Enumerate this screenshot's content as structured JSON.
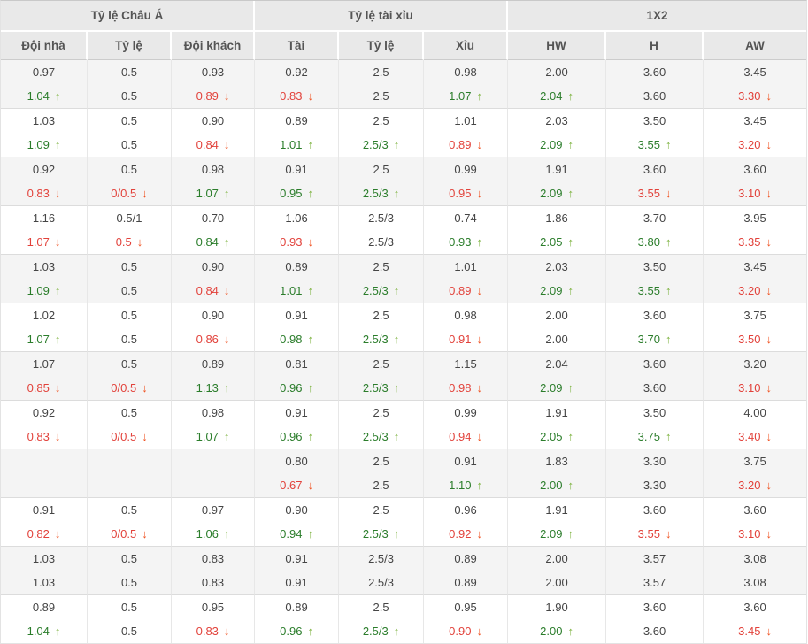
{
  "colors": {
    "up_text": "#2b7d2b",
    "up_arrow": "#7cb23d",
    "down_text": "#e2423b",
    "down_arrow": "#f05423",
    "header_bg": "#e9e9e9",
    "row_shade_bg": "#f4f4f4",
    "body_text": "#454545"
  },
  "icons": {
    "up": "↑",
    "down": "↓"
  },
  "table": {
    "groups": [
      {
        "label": "Tỷ lệ Châu Á"
      },
      {
        "label": "Tỷ lệ tài xỉu"
      },
      {
        "label": "1X2"
      }
    ],
    "columns": [
      "Đội nhà",
      "Tỷ lệ",
      "Đội khách",
      "Tài",
      "Tỷ lệ",
      "Xỉu",
      "HW",
      "H",
      "AW"
    ],
    "row_groups": [
      {
        "line1": [
          "0.97",
          "0.5",
          "0.93",
          "0.92",
          "2.5",
          "0.98",
          "2.00",
          "3.60",
          "3.45"
        ],
        "line2": [
          {
            "v": "1.04",
            "d": "up"
          },
          "0.5",
          {
            "v": "0.89",
            "d": "down"
          },
          {
            "v": "0.83",
            "d": "down"
          },
          "2.5",
          {
            "v": "1.07",
            "d": "up"
          },
          {
            "v": "2.04",
            "d": "up"
          },
          "3.60",
          {
            "v": "3.30",
            "d": "down"
          }
        ]
      },
      {
        "line1": [
          "1.03",
          "0.5",
          "0.90",
          "0.89",
          "2.5",
          "1.01",
          "2.03",
          "3.50",
          "3.45"
        ],
        "line2": [
          {
            "v": "1.09",
            "d": "up"
          },
          "0.5",
          {
            "v": "0.84",
            "d": "down"
          },
          {
            "v": "1.01",
            "d": "up"
          },
          {
            "v": "2.5/3",
            "d": "up"
          },
          {
            "v": "0.89",
            "d": "down"
          },
          {
            "v": "2.09",
            "d": "up"
          },
          {
            "v": "3.55",
            "d": "up"
          },
          {
            "v": "3.20",
            "d": "down"
          }
        ]
      },
      {
        "line1": [
          "0.92",
          "0.5",
          "0.98",
          "0.91",
          "2.5",
          "0.99",
          "1.91",
          "3.60",
          "3.60"
        ],
        "line2": [
          {
            "v": "0.83",
            "d": "down"
          },
          {
            "v": "0/0.5",
            "d": "down"
          },
          {
            "v": "1.07",
            "d": "up"
          },
          {
            "v": "0.95",
            "d": "up"
          },
          {
            "v": "2.5/3",
            "d": "up"
          },
          {
            "v": "0.95",
            "d": "down"
          },
          {
            "v": "2.09",
            "d": "up"
          },
          {
            "v": "3.55",
            "d": "down"
          },
          {
            "v": "3.10",
            "d": "down"
          }
        ]
      },
      {
        "line1": [
          "1.16",
          "0.5/1",
          "0.70",
          "1.06",
          "2.5/3",
          "0.74",
          "1.86",
          "3.70",
          "3.95"
        ],
        "line2": [
          {
            "v": "1.07",
            "d": "down"
          },
          {
            "v": "0.5",
            "d": "down"
          },
          {
            "v": "0.84",
            "d": "up"
          },
          {
            "v": "0.93",
            "d": "down"
          },
          "2.5/3",
          {
            "v": "0.93",
            "d": "up"
          },
          {
            "v": "2.05",
            "d": "up"
          },
          {
            "v": "3.80",
            "d": "up"
          },
          {
            "v": "3.35",
            "d": "down"
          }
        ]
      },
      {
        "line1": [
          "1.03",
          "0.5",
          "0.90",
          "0.89",
          "2.5",
          "1.01",
          "2.03",
          "3.50",
          "3.45"
        ],
        "line2": [
          {
            "v": "1.09",
            "d": "up"
          },
          "0.5",
          {
            "v": "0.84",
            "d": "down"
          },
          {
            "v": "1.01",
            "d": "up"
          },
          {
            "v": "2.5/3",
            "d": "up"
          },
          {
            "v": "0.89",
            "d": "down"
          },
          {
            "v": "2.09",
            "d": "up"
          },
          {
            "v": "3.55",
            "d": "up"
          },
          {
            "v": "3.20",
            "d": "down"
          }
        ]
      },
      {
        "line1": [
          "1.02",
          "0.5",
          "0.90",
          "0.91",
          "2.5",
          "0.98",
          "2.00",
          "3.60",
          "3.75"
        ],
        "line2": [
          {
            "v": "1.07",
            "d": "up"
          },
          "0.5",
          {
            "v": "0.86",
            "d": "down"
          },
          {
            "v": "0.98",
            "d": "up"
          },
          {
            "v": "2.5/3",
            "d": "up"
          },
          {
            "v": "0.91",
            "d": "down"
          },
          "2.00",
          {
            "v": "3.70",
            "d": "up"
          },
          {
            "v": "3.50",
            "d": "down"
          }
        ]
      },
      {
        "line1": [
          "1.07",
          "0.5",
          "0.89",
          "0.81",
          "2.5",
          "1.15",
          "2.04",
          "3.60",
          "3.20"
        ],
        "line2": [
          {
            "v": "0.85",
            "d": "down"
          },
          {
            "v": "0/0.5",
            "d": "down"
          },
          {
            "v": "1.13",
            "d": "up"
          },
          {
            "v": "0.96",
            "d": "up"
          },
          {
            "v": "2.5/3",
            "d": "up"
          },
          {
            "v": "0.98",
            "d": "down"
          },
          {
            "v": "2.09",
            "d": "up"
          },
          "3.60",
          {
            "v": "3.10",
            "d": "down"
          }
        ]
      },
      {
        "line1": [
          "0.92",
          "0.5",
          "0.98",
          "0.91",
          "2.5",
          "0.99",
          "1.91",
          "3.50",
          "4.00"
        ],
        "line2": [
          {
            "v": "0.83",
            "d": "down"
          },
          {
            "v": "0/0.5",
            "d": "down"
          },
          {
            "v": "1.07",
            "d": "up"
          },
          {
            "v": "0.96",
            "d": "up"
          },
          {
            "v": "2.5/3",
            "d": "up"
          },
          {
            "v": "0.94",
            "d": "down"
          },
          {
            "v": "2.05",
            "d": "up"
          },
          {
            "v": "3.75",
            "d": "up"
          },
          {
            "v": "3.40",
            "d": "down"
          }
        ]
      },
      {
        "line1": [
          "",
          "",
          "",
          "0.80",
          "2.5",
          "0.91",
          "1.83",
          "3.30",
          "3.75"
        ],
        "line2": [
          "",
          "",
          "",
          {
            "v": "0.67",
            "d": "down"
          },
          "2.5",
          {
            "v": "1.10",
            "d": "up"
          },
          {
            "v": "2.00",
            "d": "up"
          },
          "3.30",
          {
            "v": "3.20",
            "d": "down"
          }
        ]
      },
      {
        "line1": [
          "0.91",
          "0.5",
          "0.97",
          "0.90",
          "2.5",
          "0.96",
          "1.91",
          "3.60",
          "3.60"
        ],
        "line2": [
          {
            "v": "0.82",
            "d": "down"
          },
          {
            "v": "0/0.5",
            "d": "down"
          },
          {
            "v": "1.06",
            "d": "up"
          },
          {
            "v": "0.94",
            "d": "up"
          },
          {
            "v": "2.5/3",
            "d": "up"
          },
          {
            "v": "0.92",
            "d": "down"
          },
          {
            "v": "2.09",
            "d": "up"
          },
          {
            "v": "3.55",
            "d": "down"
          },
          {
            "v": "3.10",
            "d": "down"
          }
        ]
      },
      {
        "line1": [
          "1.03",
          "0.5",
          "0.83",
          "0.91",
          "2.5/3",
          "0.89",
          "2.00",
          "3.57",
          "3.08"
        ],
        "line2": [
          "1.03",
          "0.5",
          "0.83",
          "0.91",
          "2.5/3",
          "0.89",
          "2.00",
          "3.57",
          "3.08"
        ]
      },
      {
        "line1": [
          "0.89",
          "0.5",
          "0.95",
          "0.89",
          "2.5",
          "0.95",
          "1.90",
          "3.60",
          "3.60"
        ],
        "line2": [
          {
            "v": "1.04",
            "d": "up"
          },
          "0.5",
          {
            "v": "0.83",
            "d": "down"
          },
          {
            "v": "0.96",
            "d": "up"
          },
          {
            "v": "2.5/3",
            "d": "up"
          },
          {
            "v": "0.90",
            "d": "down"
          },
          {
            "v": "2.00",
            "d": "up"
          },
          "3.60",
          {
            "v": "3.45",
            "d": "down"
          }
        ]
      }
    ]
  }
}
